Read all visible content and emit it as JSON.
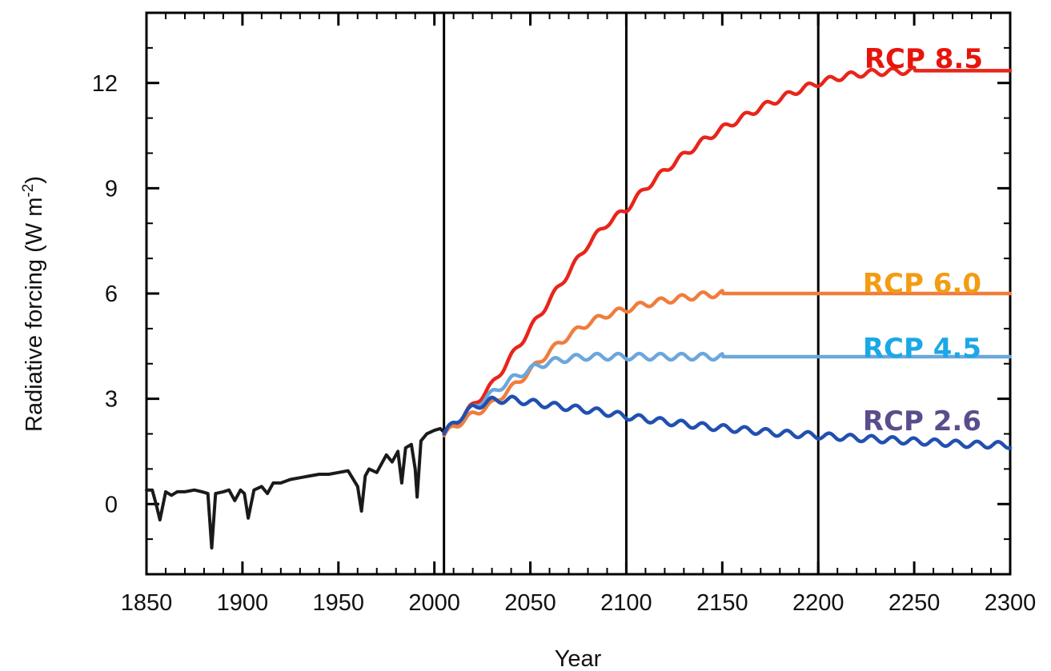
{
  "chart_data": {
    "type": "line",
    "title": "",
    "xlabel": "Year",
    "ylabel": "Radiative  forcing (W m",
    "ylabel_superscript": "-2",
    "ylabel_close": ")",
    "xlim": [
      1850,
      2300
    ],
    "ylim": [
      -2,
      14
    ],
    "x_ticks": [
      "1850",
      "1900",
      "1950",
      "2000",
      "2050",
      "2100",
      "2150",
      "2200",
      "2250",
      "2300"
    ],
    "y_ticks": [
      "0",
      "3",
      "6",
      "9",
      "12"
    ],
    "vertical_lines": [
      2005,
      2100,
      2200
    ],
    "grid": false,
    "series": [
      {
        "id": "historical",
        "color": "#1a1a1a",
        "x": [
          1850,
          1853,
          1855,
          1857,
          1860,
          1863,
          1866,
          1870,
          1875,
          1879,
          1882,
          1884,
          1886,
          1890,
          1893,
          1896,
          1899,
          1901,
          1903,
          1906,
          1910,
          1913,
          1916,
          1920,
          1925,
          1930,
          1935,
          1940,
          1945,
          1950,
          1955,
          1960,
          1962,
          1964,
          1966,
          1970,
          1975,
          1978,
          1981,
          1983,
          1985,
          1988,
          1990,
          1991,
          1993,
          1996,
          2000,
          2003,
          2005
        ],
        "y": [
          0.4,
          0.4,
          0.0,
          -0.45,
          0.35,
          0.25,
          0.35,
          0.35,
          0.4,
          0.35,
          0.3,
          -1.25,
          0.3,
          0.35,
          0.4,
          0.1,
          0.4,
          0.3,
          -0.4,
          0.4,
          0.5,
          0.3,
          0.6,
          0.6,
          0.7,
          0.75,
          0.8,
          0.85,
          0.85,
          0.9,
          0.95,
          0.5,
          -0.2,
          0.8,
          1.0,
          0.9,
          1.4,
          1.2,
          1.5,
          0.6,
          1.6,
          1.7,
          1.0,
          0.2,
          1.8,
          2.0,
          2.1,
          2.15,
          2.05
        ]
      },
      {
        "id": "rcp85",
        "name": "RCP 8.5",
        "color": "#e8251a",
        "x": [
          2005,
          2010,
          2020,
          2030,
          2040,
          2050,
          2060,
          2070,
          2080,
          2090,
          2100,
          2110,
          2120,
          2130,
          2140,
          2150,
          2160,
          2170,
          2180,
          2190,
          2200,
          2210,
          2220,
          2230,
          2240,
          2250,
          2300
        ],
        "y": [
          2.0,
          2.25,
          2.8,
          3.4,
          4.2,
          5.0,
          5.8,
          6.6,
          7.4,
          8.0,
          8.4,
          9.0,
          9.5,
          9.95,
          10.35,
          10.7,
          11.0,
          11.3,
          11.55,
          11.8,
          12.0,
          12.15,
          12.25,
          12.3,
          12.33,
          12.35,
          12.35
        ],
        "wiggle": true
      },
      {
        "id": "rcp60",
        "name": "RCP 6.0",
        "color": "#f07d3c",
        "x": [
          2005,
          2010,
          2020,
          2030,
          2040,
          2050,
          2060,
          2070,
          2080,
          2090,
          2100,
          2110,
          2120,
          2130,
          2140,
          2150,
          2300
        ],
        "y": [
          1.95,
          2.2,
          2.55,
          2.85,
          3.3,
          3.8,
          4.35,
          4.8,
          5.15,
          5.4,
          5.55,
          5.7,
          5.8,
          5.88,
          5.95,
          6.0,
          6.0
        ],
        "wiggle": true
      },
      {
        "id": "rcp45",
        "name": "RCP 4.5",
        "color": "#6aa7dc",
        "x": [
          2005,
          2010,
          2020,
          2030,
          2040,
          2050,
          2060,
          2070,
          2080,
          2090,
          2100,
          2110,
          2120,
          2130,
          2140,
          2150,
          2300
        ],
        "y": [
          2.0,
          2.3,
          2.75,
          3.15,
          3.55,
          3.85,
          4.05,
          4.15,
          4.2,
          4.2,
          4.2,
          4.2,
          4.2,
          4.2,
          4.2,
          4.2,
          4.2
        ],
        "wiggle": true
      },
      {
        "id": "rcp26",
        "name": "RCP 2.6",
        "color": "#2150b0",
        "x": [
          2005,
          2010,
          2020,
          2030,
          2040,
          2050,
          2060,
          2070,
          2080,
          2090,
          2100,
          2120,
          2140,
          2160,
          2180,
          2200,
          2220,
          2240,
          2260,
          2280,
          2300
        ],
        "y": [
          2.0,
          2.3,
          2.75,
          2.95,
          2.98,
          2.9,
          2.82,
          2.75,
          2.68,
          2.6,
          2.5,
          2.35,
          2.22,
          2.12,
          2.02,
          1.95,
          1.88,
          1.82,
          1.76,
          1.7,
          1.68
        ],
        "wiggle": true
      }
    ]
  },
  "labels": {
    "rcp85": {
      "text": "RCP 8.5",
      "color": "#e8140c"
    },
    "rcp60": {
      "text": "RCP 6.0",
      "color": "#f39c12"
    },
    "rcp45": {
      "text": "RCP 4.5",
      "color": "#1ba8e6"
    },
    "rcp26": {
      "text": "RCP 2.6",
      "color": "#5b4c8c"
    }
  }
}
